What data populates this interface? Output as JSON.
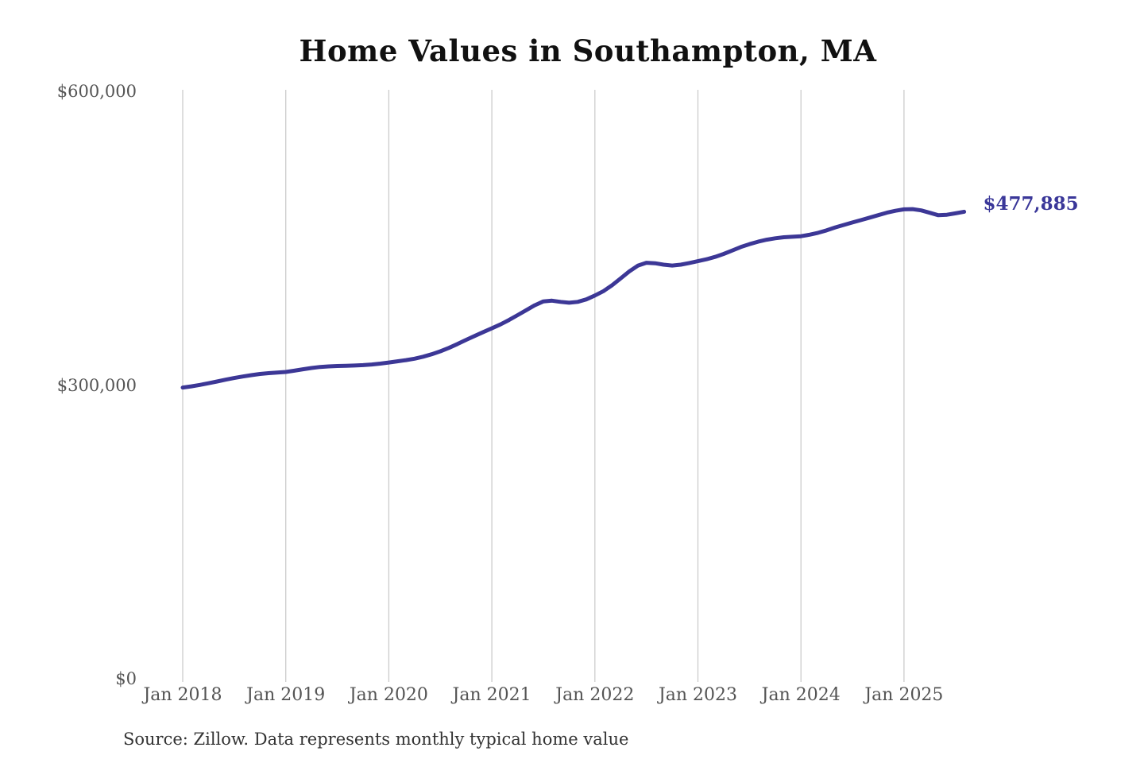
{
  "title": "Home Values in Southampton, MA",
  "latest_value_label": "$477,885",
  "source_note": "Source: Zillow. Data represents monthly typical home value",
  "colors": {
    "line": "#3c3796",
    "value_label": "#3a3799",
    "gridline": "#cccccc",
    "axis_text": "#545454",
    "title_text": "#111111",
    "source_text": "#333333",
    "background": "#ffffff"
  },
  "chart_data": {
    "type": "line",
    "title": "Home Values in Southampton, MA",
    "xlabel": "",
    "ylabel": "",
    "ylim": [
      0,
      600000
    ],
    "grid": "vertical-only",
    "legend": "none",
    "x_tick_labels": [
      "Jan 2018",
      "Jan 2019",
      "Jan 2020",
      "Jan 2021",
      "Jan 2022",
      "Jan 2023",
      "Jan 2024",
      "Jan 2025"
    ],
    "y_ticks": [
      {
        "label": "$0",
        "value": 0
      },
      {
        "label": "$300,000",
        "value": 300000
      },
      {
        "label": "$600,000",
        "value": 600000
      }
    ],
    "end_label": "$477,885",
    "end_value": 477885,
    "series": [
      {
        "name": "Monthly typical home value",
        "start": "2018-01",
        "frequency": "monthly",
        "values": [
          298300,
          299500,
          301000,
          302700,
          304500,
          306300,
          308000,
          309600,
          311000,
          312200,
          313000,
          313600,
          314200,
          315500,
          317000,
          318300,
          319300,
          319900,
          320300,
          320500,
          320800,
          321200,
          321800,
          322700,
          323900,
          325100,
          326300,
          327800,
          329800,
          332300,
          335300,
          338800,
          342800,
          347000,
          351000,
          355000,
          358800,
          362800,
          367300,
          372300,
          377300,
          382300,
          386300,
          387000,
          385800,
          384900,
          385800,
          388300,
          392300,
          396800,
          402800,
          409800,
          416800,
          422800,
          425800,
          425300,
          423800,
          422900,
          423800,
          425500,
          427400,
          429300,
          431800,
          434800,
          438300,
          441800,
          444800,
          447300,
          449300,
          450800,
          451800,
          452300,
          452900,
          454400,
          456400,
          458900,
          461900,
          464400,
          466900,
          469400,
          471900,
          474400,
          476900,
          478900,
          480300,
          480600,
          479300,
          476800,
          474300,
          474800,
          476300,
          477885
        ]
      }
    ]
  }
}
